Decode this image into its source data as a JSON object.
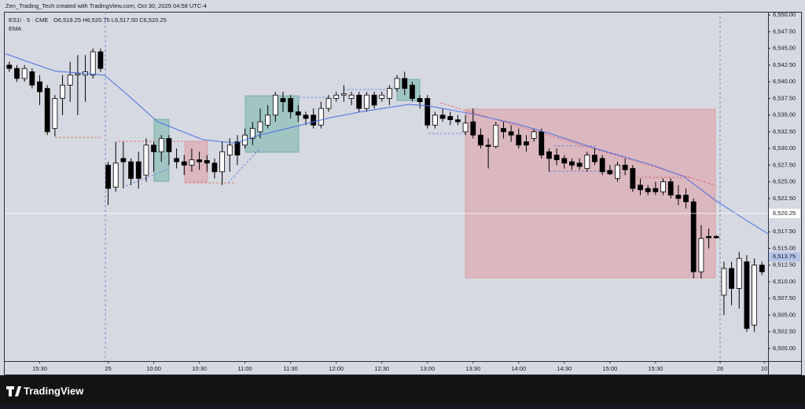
{
  "chart_data": {
    "type": "candlestick",
    "title": "Zen_Trading_Tech created with TradingView.com, Oct 30, 2025 04:58 UTC-4",
    "subtitle": "ES1! · 5 · CME",
    "ohlc_readout": "O6,519.25 H6,520.75 L6,517.50 C6,520.25",
    "brand": "TradingView",
    "up_color": "#ffffff",
    "down_color": "#000000",
    "open": [
      6542.5,
      6542.0,
      6540.5,
      6541.5,
      6540,
      6539,
      6533,
      6537.5,
      6539.5,
      6541,
      6541,
      6541,
      6544.5,
      6527.5,
      6524.2,
      6528.5,
      6528,
      6528,
      6526,
      6530.5,
      6529.5,
      6531.5,
      6528.5,
      6528,
      6527.5,
      6528.3,
      6528.2,
      6527.8,
      6526.5,
      6529,
      6531,
      6530.5,
      6531.5,
      6532.5,
      6533.5,
      6535,
      6537.5,
      6537.5,
      6535.5,
      6535,
      6535,
      6533.5,
      6536,
      6537.5,
      6538,
      6537.5,
      6538,
      6536,
      6538,
      6537.5,
      6537.5,
      6539,
      6540.5,
      6539.5,
      6537.5,
      6537.5,
      6533.5,
      6535,
      6534.8,
      6534.3,
      6532.5,
      6534,
      6532,
      6530.5,
      6530.3,
      6533,
      6532.5,
      6532,
      6531,
      6531.5,
      6532.5,
      6529.5,
      6529,
      6528.5,
      6528,
      6527.8,
      6527,
      6529,
      6528.5,
      6526.7,
      6525.5,
      6527.5,
      6527,
      6524.5,
      6524,
      6524,
      6523.5,
      6525,
      6523,
      6523,
      6522,
      6511.5,
      6516.8,
      6516.8,
      6508,
      6512,
      6509,
      6513,
      6503.5,
      6512.5
    ],
    "high": [
      6543,
      6542.5,
      6542.5,
      6542,
      6541,
      6539.5,
      6538,
      6541,
      6543,
      6544,
      6544,
      6545,
      6545,
      6528,
      6531,
      6531,
      6528.5,
      6529.5,
      6531.5,
      6531,
      6532,
      6532,
      6530,
      6529,
      6530,
      6529.5,
      6529,
      6528.5,
      6531,
      6531.5,
      6532,
      6533,
      6534,
      6536,
      6536.5,
      6538.5,
      6538.5,
      6538,
      6536.5,
      6535.5,
      6536,
      6537,
      6538,
      6538.5,
      6539.5,
      6538.5,
      6538.5,
      6538.5,
      6538.5,
      6538.5,
      6539.5,
      6541,
      6541.5,
      6540,
      6538,
      6538,
      6535.5,
      6536,
      6535.5,
      6535,
      6535,
      6536,
      6533,
      6531.5,
      6534,
      6534,
      6533.5,
      6533,
      6532,
      6533,
      6533,
      6530,
      6530,
      6529,
      6528.5,
      6528.5,
      6529.5,
      6530,
      6529,
      6527.5,
      6528,
      6528.5,
      6527.5,
      6525.5,
      6524.5,
      6525,
      6525.5,
      6525.5,
      6524.5,
      6524,
      6522.5,
      6518.5,
      6518,
      6517,
      6513,
      6513,
      6514.5,
      6514,
      6513.5,
      6513
    ],
    "low": [
      6541.5,
      6540,
      6540,
      6539,
      6536.5,
      6532,
      6531.8,
      6535,
      6537,
      6535,
      6537,
      6540.5,
      6541.5,
      6521.5,
      6523.5,
      6524,
      6524.5,
      6524,
      6525,
      6526.5,
      6528,
      6527.5,
      6527,
      6526,
      6526.5,
      6526.8,
      6526.5,
      6525.5,
      6524.5,
      6526.5,
      6527.5,
      6530,
      6530.5,
      6531.5,
      6533,
      6534,
      6535.5,
      6534.5,
      6534,
      6533.5,
      6533,
      6533,
      6535.5,
      6537,
      6537,
      6536.5,
      6535.5,
      6535.5,
      6536,
      6537,
      6536.5,
      6538.5,
      6538,
      6537,
      6536,
      6533,
      6533,
      6534,
      6533.5,
      6533.5,
      6532,
      6531.5,
      6530,
      6527,
      6530,
      6531.5,
      6531,
      6530,
      6529.5,
      6531,
      6528.5,
      6526.5,
      6527.5,
      6527,
      6526.8,
      6526.8,
      6526.5,
      6527.5,
      6526,
      6526,
      6525,
      6526,
      6523.5,
      6523,
      6523,
      6523,
      6523,
      6522.5,
      6521.5,
      6521,
      6510.5,
      6510.5,
      6515,
      6516.5,
      6505,
      6506.5,
      6506,
      6502.5,
      6502.5,
      6511
    ],
    "close": [
      6542.0,
      6540.5,
      6542.0,
      6539.5,
      6538.5,
      6532.5,
      6537.5,
      6539.5,
      6541,
      6541.2,
      6541.5,
      6544.5,
      6542,
      6524,
      6527.8,
      6528,
      6525.5,
      6525.5,
      6530.5,
      6529.5,
      6531.5,
      6529.5,
      6528,
      6527.5,
      6528.3,
      6528,
      6527.8,
      6526.5,
      6529.5,
      6530.5,
      6529,
      6532,
      6533,
      6534,
      6535,
      6538,
      6537,
      6535.5,
      6535,
      6534.5,
      6533.5,
      6536,
      6537.5,
      6538,
      6538.2,
      6538,
      6536,
      6538,
      6536.5,
      6538,
      6539,
      6540.5,
      6539,
      6537.5,
      6537,
      6533.5,
      6535,
      6534.5,
      6534.3,
      6534,
      6533.8,
      6532,
      6530.5,
      6530.3,
      6533.5,
      6532.5,
      6532,
      6530.5,
      6530.5,
      6532.5,
      6529,
      6528.5,
      6528.3,
      6527.8,
      6527.5,
      6527.3,
      6529,
      6528,
      6526.5,
      6526.2,
      6527.5,
      6526.8,
      6524,
      6523.8,
      6523.5,
      6523.5,
      6525,
      6523,
      6522.5,
      6522,
      6511.5,
      6516.5,
      6516.6,
      6516.6,
      6512,
      6509,
      6513.5,
      6503,
      6512.5,
      6511.5
    ],
    "series": [
      {
        "name": "EMA",
        "color": "#4a6fe3",
        "x": [
          -0.5,
          6,
          12.5,
          15.5,
          19.5,
          25.5,
          29.8,
          32.9,
          38,
          42.2,
          46.3,
          52.5,
          55.1,
          60.8,
          67,
          71.2,
          77.4,
          84.6,
          88.7,
          92.9,
          96,
          99.8
        ],
        "values": [
          6544.2,
          6541.6,
          6541,
          6538.1,
          6534,
          6531.3,
          6530.8,
          6532,
          6533.4,
          6534.6,
          6535.5,
          6536.6,
          6536.4,
          6535.2,
          6533.6,
          6532.2,
          6529.9,
          6527.5,
          6525.8,
          6522.2,
          6519.9,
          6517.2
        ]
      }
    ],
    "xlim": [
      -0.5,
      99.8
    ],
    "xticks": [
      {
        "value": 4,
        "label": "15:30"
      },
      {
        "value": 13,
        "label": "25"
      },
      {
        "value": 19,
        "label": "10:00"
      },
      {
        "value": 25,
        "label": "10:30"
      },
      {
        "value": 31,
        "label": "11:00"
      },
      {
        "value": 37,
        "label": "11:30"
      },
      {
        "value": 43,
        "label": "12:00"
      },
      {
        "value": 49,
        "label": "12:30"
      },
      {
        "value": 55,
        "label": "13:00"
      },
      {
        "value": 61,
        "label": "13:30"
      },
      {
        "value": 67,
        "label": "14:00"
      },
      {
        "value": 73,
        "label": "14:30"
      },
      {
        "value": 79,
        "label": "15:00"
      },
      {
        "value": 85,
        "label": "15:30"
      },
      {
        "value": 93.5,
        "label": "26"
      },
      {
        "value": 99.3,
        "label": "10"
      }
    ],
    "ylim": [
      6498.1,
      6550.5
    ],
    "yticks": [
      {
        "value": 6500,
        "label": "6,500.00"
      },
      {
        "value": 6502.5,
        "label": "6,502.50"
      },
      {
        "value": 6505,
        "label": "6,505.00"
      },
      {
        "value": 6507.5,
        "label": "6,507.50"
      },
      {
        "value": 6510,
        "label": "6,510.00"
      },
      {
        "value": 6512.5,
        "label": "6,512.50"
      },
      {
        "value": 6515,
        "label": "6,515.00"
      },
      {
        "value": 6517.5,
        "label": "6,517.50"
      },
      {
        "value": 6522.5,
        "label": "6,522.50"
      },
      {
        "value": 6525,
        "label": "6,525.00"
      },
      {
        "value": 6527.5,
        "label": "6,527.50"
      },
      {
        "value": 6530,
        "label": "6,530.00"
      },
      {
        "value": 6532.5,
        "label": "6,532.50"
      },
      {
        "value": 6535,
        "label": "6,535.00"
      },
      {
        "value": 6537.5,
        "label": "6,537.50"
      },
      {
        "value": 6540,
        "label": "6,540.00"
      },
      {
        "value": 6542.5,
        "label": "6,542.50"
      },
      {
        "value": 6545,
        "label": "6,545.00"
      },
      {
        "value": 6547.5,
        "label": "6,547.50"
      },
      {
        "value": 6550,
        "label": "6,550.00"
      }
    ],
    "price_labels": [
      {
        "value": 6520.25,
        "label": "6,520.25",
        "color": "#ffffff"
      },
      {
        "value": 6513.75,
        "label": "6,513.75",
        "color": "#b7c4e8"
      }
    ]
  }
}
